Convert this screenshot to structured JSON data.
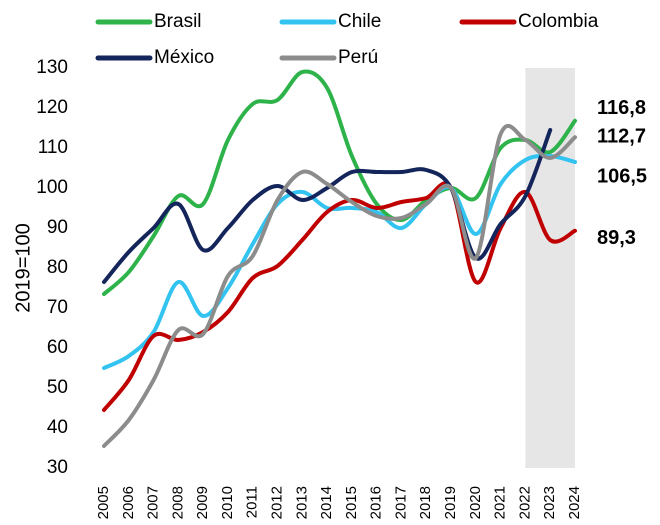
{
  "chart_data": {
    "type": "line",
    "ylabel": "2019=100",
    "x": [
      2005,
      2006,
      2007,
      2008,
      2009,
      2010,
      2011,
      2012,
      2013,
      2014,
      2015,
      2016,
      2017,
      2018,
      2019,
      2020,
      2021,
      2022,
      2023,
      2024
    ],
    "xlim": [
      2005,
      2024
    ],
    "ylim": [
      30,
      130
    ],
    "yticks": [
      30,
      40,
      50,
      60,
      70,
      80,
      90,
      100,
      110,
      120,
      130
    ],
    "grid": false,
    "shaded_xrange": [
      2022,
      2024
    ],
    "legend": "top",
    "series": [
      {
        "name": "Brasil",
        "color": "#2eb34b",
        "values": [
          73.5,
          79,
          88,
          98,
          96,
          112,
          121,
          122,
          129,
          125,
          108,
          96,
          92,
          97,
          100,
          97.5,
          110,
          112,
          109,
          116.8
        ],
        "value_labels": [
          null,
          null,
          null,
          null,
          null,
          null,
          null,
          null,
          null,
          null,
          null,
          null,
          null,
          null,
          null,
          null,
          null,
          null,
          null,
          "116,8"
        ]
      },
      {
        "name": "Chile",
        "color": "#33c3f0",
        "values": [
          55,
          58,
          64,
          76.5,
          68,
          75,
          86,
          96,
          99,
          95,
          95,
          94,
          90,
          96,
          100,
          88.5,
          101,
          107,
          108,
          106.5
        ],
        "value_labels": [
          null,
          null,
          null,
          null,
          null,
          null,
          null,
          null,
          null,
          null,
          null,
          null,
          null,
          null,
          null,
          null,
          null,
          null,
          null,
          "106,5"
        ]
      },
      {
        "name": "Colombia",
        "color": "#c00000",
        "values": [
          44.5,
          52,
          63,
          62,
          64,
          69,
          77.5,
          80.5,
          87,
          94,
          97,
          95,
          96.5,
          97.5,
          100,
          76.5,
          90,
          99,
          87,
          89.3
        ],
        "value_labels": [
          null,
          null,
          null,
          null,
          null,
          null,
          null,
          null,
          null,
          null,
          null,
          null,
          null,
          null,
          null,
          null,
          null,
          null,
          null,
          "89,3"
        ]
      },
      {
        "name": "México",
        "color": "#13255a",
        "values": [
          76.5,
          84,
          90,
          96,
          84.5,
          90,
          97,
          100.5,
          97,
          100,
          104,
          104,
          104,
          104.5,
          100,
          82.5,
          91,
          98,
          114.5,
          null
        ]
      },
      {
        "name": "Perú",
        "color": "#8c8c8c",
        "values": [
          35.5,
          42,
          52,
          64.5,
          63.5,
          78,
          83,
          97,
          104,
          101,
          96.5,
          93,
          92.5,
          96,
          100,
          82.5,
          113.5,
          112,
          107.5,
          112.7
        ],
        "value_labels": [
          null,
          null,
          null,
          null,
          null,
          null,
          null,
          null,
          null,
          null,
          null,
          null,
          null,
          null,
          null,
          null,
          null,
          null,
          null,
          "112,7"
        ]
      }
    ]
  }
}
